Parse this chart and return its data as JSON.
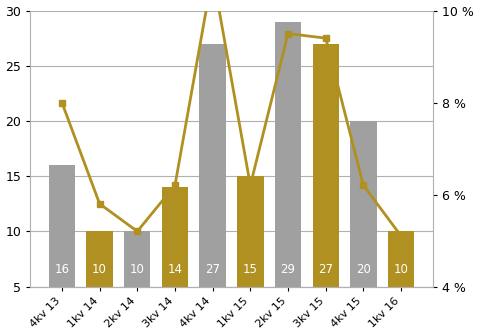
{
  "categories": [
    "4kv 13",
    "1kv 14",
    "2kv 14",
    "3kv 14",
    "4kv 14",
    "1kv 15",
    "2kv 15",
    "3kv 15",
    "4kv 15",
    "1kv 16"
  ],
  "bar_values": [
    16,
    10,
    10,
    14,
    27,
    15,
    29,
    27,
    20,
    10
  ],
  "bar_colors": [
    "#a0a0a0",
    "#b09020",
    "#a0a0a0",
    "#b09020",
    "#a0a0a0",
    "#b09020",
    "#a0a0a0",
    "#b09020",
    "#a0a0a0",
    "#b09020"
  ],
  "line_values": [
    8.0,
    5.8,
    5.2,
    6.2,
    10.8,
    6.2,
    9.5,
    9.4,
    6.2,
    5.1
  ],
  "line_color": "#b09020",
  "line_marker": "s",
  "line_markersize": 4,
  "ylim_left": [
    5,
    30
  ],
  "ylim_right": [
    4,
    10
  ],
  "yticks_left": [
    5,
    10,
    15,
    20,
    25,
    30
  ],
  "yticks_right": [
    4,
    6,
    8,
    10
  ],
  "ytick_labels_right": [
    "4 %",
    "6 %",
    "8 %",
    "10 %"
  ],
  "bar_label_color": "#ffffff",
  "bar_label_fontsize": 8.5,
  "bar_width": 0.7,
  "background_color": "#ffffff",
  "grid_color": "#b0b0b0",
  "figsize": [
    4.79,
    3.35
  ],
  "dpi": 100
}
